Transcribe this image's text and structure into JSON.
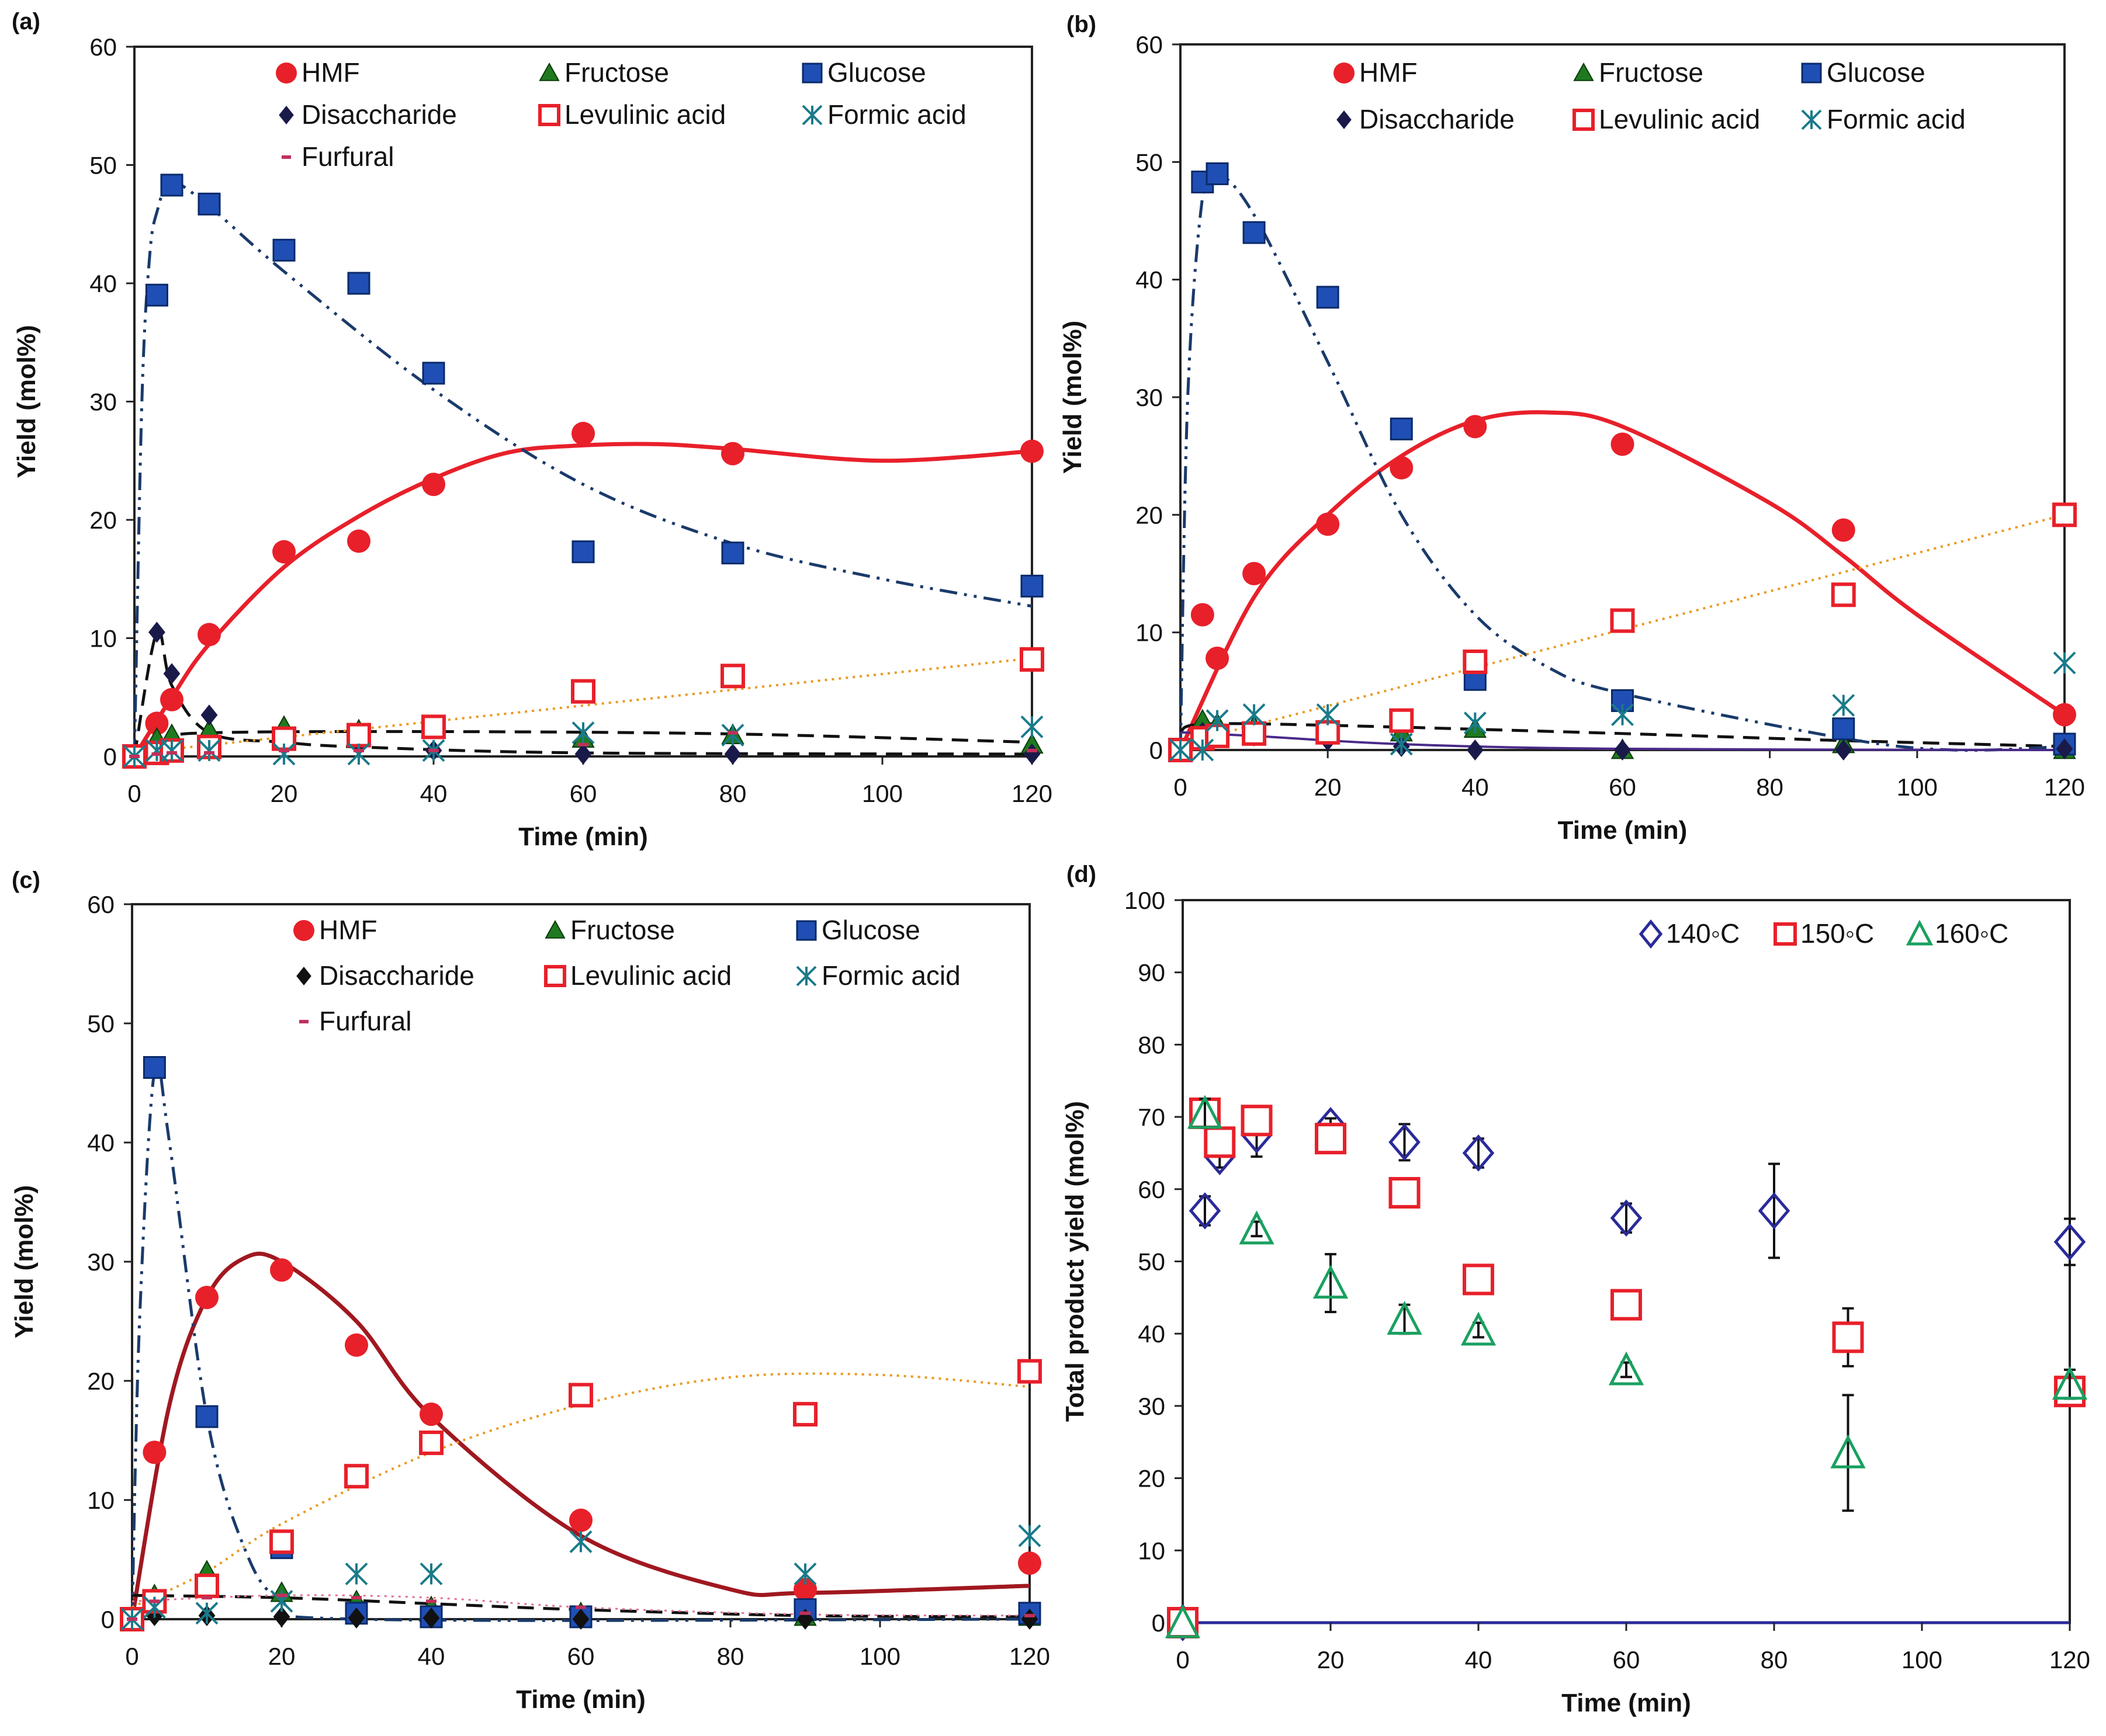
{
  "chart_data": [
    {
      "panel": "(a)",
      "type": "scatter",
      "xlabel": "Time (min)",
      "ylabel": "Yield (mol%)",
      "xlim": [
        0,
        120
      ],
      "ylim": [
        0,
        60
      ],
      "xticks": [
        0,
        20,
        40,
        60,
        80,
        100,
        120
      ],
      "yticks": [
        0,
        10,
        20,
        30,
        40,
        50,
        60
      ],
      "legend": "top",
      "grid": false,
      "x": [
        0,
        3,
        5,
        10,
        20,
        30,
        40,
        60,
        80,
        120
      ],
      "series": [
        {
          "name": "HMF",
          "marker": "circle",
          "color": "#e8202a",
          "values": [
            0,
            2.8,
            4.8,
            10.3,
            17.3,
            18.2,
            23,
            27.3,
            25.6,
            25.8
          ],
          "fit": {
            "style": "solid",
            "x": [
              0,
              5,
              10,
              20,
              30,
              40,
              50,
              60,
              70,
              80,
              100,
              120
            ],
            "y": [
              0,
              5,
              9.5,
              16,
              20.3,
              23.5,
              25.7,
              26.3,
              26.4,
              26,
              25,
              25.8
            ]
          }
        },
        {
          "name": "Fructose",
          "marker": "triangle",
          "color": "#1f7a1f",
          "values": [
            0,
            1.5,
            1.8,
            2.2,
            2.5,
            2.2,
            2.5,
            1.5,
            1.8,
            1.0
          ],
          "fit": {
            "style": "dashed",
            "x": [
              0,
              5,
              10,
              40,
              80,
              120
            ],
            "y": [
              0,
              1.5,
              2,
              2.1,
              1.9,
              1.2
            ]
          }
        },
        {
          "name": "Glucose",
          "marker": "square",
          "color": "#1f4fb4",
          "values": [
            0,
            39,
            48.3,
            46.7,
            42.8,
            40,
            32.4,
            17.3,
            17.2,
            14.4
          ],
          "fit": {
            "style": "dashdotdot",
            "x": [
              0,
              1,
              2,
              3,
              5,
              10,
              20,
              40,
              60,
              80,
              100,
              120
            ],
            "y": [
              0,
              30,
              42,
              46,
              48.5,
              46.5,
              41,
              31,
              23,
              18,
              15,
              12.7
            ]
          }
        },
        {
          "name": "Disaccharide",
          "marker": "diamond",
          "color": "#1a1a4a",
          "values": [
            0,
            10.5,
            7,
            3.5,
            1.2,
            1.0,
            0.5,
            0.2,
            0.2,
            0.2
          ],
          "fit": {
            "style": "dashed",
            "x": [
              0,
              3,
              5,
              10,
              20,
              30,
              60,
              120
            ],
            "y": [
              0,
              10.5,
              6,
              2,
              1.2,
              0.8,
              0.3,
              0.2
            ]
          }
        },
        {
          "name": "Levulinic acid",
          "marker": "open-square",
          "color": "#e8202a",
          "values": [
            0,
            0.3,
            0.5,
            0.8,
            1.5,
            1.8,
            2.5,
            5.5,
            6.8,
            8.2
          ],
          "fit": {
            "style": "dotted",
            "x": [
              0,
              120
            ],
            "y": [
              0.3,
              8.3
            ]
          }
        },
        {
          "name": "Formic acid",
          "marker": "asterisk",
          "color": "#1a7a8a",
          "values": [
            0,
            0.5,
            0.5,
            0.5,
            0.2,
            0.2,
            0.5,
            2.0,
            1.8,
            2.5
          ]
        },
        {
          "name": "Furfural",
          "marker": "dash",
          "color": "#c0305a",
          "values": [
            0,
            0.2,
            0.3,
            0.3,
            0.5,
            0.5,
            0.5,
            1.0,
            2.0,
            0.5
          ]
        }
      ]
    },
    {
      "panel": "(b)",
      "type": "scatter",
      "xlabel": "Time (min)",
      "ylabel": "Yield (mol%)",
      "xlim": [
        0,
        120
      ],
      "ylim": [
        0,
        60
      ],
      "xticks": [
        0,
        20,
        40,
        60,
        80,
        100,
        120
      ],
      "yticks": [
        0,
        10,
        20,
        30,
        40,
        50,
        60
      ],
      "legend": "top",
      "grid": false,
      "x": [
        0,
        3,
        5,
        10,
        20,
        30,
        40,
        60,
        90,
        120
      ],
      "series": [
        {
          "name": "HMF",
          "marker": "circle",
          "color": "#e8202a",
          "values": [
            0,
            11.5,
            7.8,
            15,
            19.2,
            24,
            27.5,
            26,
            18.7,
            3
          ],
          "fit": {
            "style": "solid",
            "x": [
              0,
              10,
              20,
              30,
              40,
              50,
              60,
              80,
              90,
              100,
              120
            ],
            "y": [
              0,
              13,
              20,
              25,
              28,
              28.7,
              27.5,
              21,
              16.5,
              11.5,
              3
            ]
          }
        },
        {
          "name": "Fructose",
          "marker": "triangle",
          "color": "#1f7a1f",
          "values": [
            0,
            2.5,
            2.2,
            2,
            1.8,
            1.5,
            1.8,
            0,
            0.5,
            0
          ],
          "fit": {
            "style": "dashed",
            "x": [
              0,
              3,
              20,
              60,
              90,
              120
            ],
            "y": [
              1.5,
              2.2,
              2.1,
              1.4,
              0.8,
              0.3
            ]
          }
        },
        {
          "name": "Glucose",
          "marker": "square",
          "color": "#1f4fb4",
          "values": [
            0,
            48.3,
            49,
            44,
            38.5,
            27.3,
            6,
            4.2,
            1.8,
            0.5
          ],
          "fit": {
            "style": "dashdotdot",
            "x": [
              0,
              1,
              3,
              5,
              10,
              20,
              30,
              40,
              50,
              60,
              90,
              105,
              120
            ],
            "y": [
              0,
              30,
              47,
              49,
              45.5,
              33,
              20,
              11.5,
              7,
              4.8,
              1,
              0,
              0.3
            ]
          }
        },
        {
          "name": "Disaccharide",
          "marker": "diamond",
          "color": "#1a1a4a",
          "values": [
            0,
            1.5,
            1.5,
            1.2,
            0.8,
            0.3,
            0,
            0,
            0,
            0.1
          ],
          "fit": {
            "style": "solid-thin",
            "x": [
              0,
              10,
              30,
              60,
              120
            ],
            "y": [
              1.5,
              1.2,
              0.5,
              0.1,
              0
            ]
          }
        },
        {
          "name": "Levulinic acid",
          "marker": "open-square",
          "color": "#e8202a",
          "values": [
            0,
            1,
            1.2,
            1.4,
            1.5,
            2.5,
            7.5,
            11,
            13.2,
            20
          ],
          "fit": {
            "style": "dotted",
            "x": [
              0,
              120
            ],
            "y": [
              0.5,
              20
            ]
          }
        },
        {
          "name": "Formic acid",
          "marker": "asterisk",
          "color": "#1a7a8a",
          "values": [
            0,
            0,
            2.5,
            3,
            3,
            0.5,
            2.3,
            3,
            3.8,
            7.4
          ]
        }
      ]
    },
    {
      "panel": "(c)",
      "type": "scatter",
      "xlabel": "Time (min)",
      "ylabel": "Yield (mol%)",
      "xlim": [
        0,
        120
      ],
      "ylim": [
        0,
        60
      ],
      "xticks": [
        0,
        20,
        40,
        60,
        80,
        100,
        120
      ],
      "yticks": [
        0,
        10,
        20,
        30,
        40,
        50,
        60
      ],
      "legend": "top",
      "grid": false,
      "x": [
        0,
        3,
        10,
        20,
        30,
        40,
        60,
        90,
        120
      ],
      "series": [
        {
          "name": "HMF",
          "marker": "circle",
          "color": "#e8202a",
          "values": [
            0,
            14,
            27,
            29.3,
            23,
            17.2,
            8.3,
            2.5,
            4.7
          ],
          "fit": {
            "style": "solid-dark",
            "x": [
              0,
              5,
              10,
              15,
              20,
              30,
              40,
              60,
              80,
              90,
              120
            ],
            "y": [
              0,
              18,
              27,
              30.3,
              30,
              25,
              17,
              7,
              2.5,
              2.2,
              2.8
            ]
          }
        },
        {
          "name": "Fructose",
          "marker": "triangle",
          "color": "#1f7a1f",
          "values": [
            0,
            2,
            4,
            2.2,
            1.5,
            1,
            0.5,
            0.2,
            0.2
          ],
          "fit": {
            "style": "dashed",
            "x": [
              0,
              20,
              40,
              60,
              90,
              120
            ],
            "y": [
              2,
              1.8,
              1.3,
              0.8,
              0.3,
              0.2
            ]
          }
        },
        {
          "name": "Glucose",
          "marker": "square",
          "color": "#1f4fb4",
          "values": [
            0,
            46.3,
            17,
            6,
            0.5,
            0.2,
            0.2,
            0.8,
            0.5
          ],
          "fit": {
            "style": "dashdotdot",
            "x": [
              0,
              1,
              3,
              5,
              10,
              15,
              20,
              30,
              120
            ],
            "y": [
              0,
              25,
              46,
              40,
              17,
              6,
              1.5,
              0,
              0
            ]
          }
        },
        {
          "name": "Disaccharide",
          "marker": "diamond",
          "color": "#111111",
          "values": [
            0,
            0.3,
            0.3,
            0.2,
            0.1,
            0.1,
            0,
            0,
            0
          ]
        },
        {
          "name": "Levulinic acid",
          "marker": "open-square",
          "color": "#e8202a",
          "values": [
            0,
            1.5,
            2.8,
            6.5,
            12,
            14.8,
            18.8,
            17.2,
            20.8
          ],
          "fit": {
            "style": "dotted",
            "x": [
              0,
              10,
              20,
              40,
              60,
              80,
              100,
              120
            ],
            "y": [
              1,
              4,
              8,
              14,
              18,
              20.3,
              20.5,
              19.5
            ]
          }
        },
        {
          "name": "Formic acid",
          "marker": "asterisk",
          "color": "#1a7a8a",
          "values": [
            0,
            1,
            0.5,
            1.5,
            3.8,
            3.8,
            6.5,
            3.8,
            7
          ]
        },
        {
          "name": "Furfural",
          "marker": "dash",
          "color": "#c0305a",
          "values": [
            0,
            1.5,
            1.8,
            2,
            1.8,
            1.5,
            1,
            0.5,
            0.3
          ],
          "fit": {
            "style": "dotted-pink",
            "x": [
              0,
              20,
              40,
              60,
              90,
              120
            ],
            "y": [
              1.5,
              2,
              1.8,
              1,
              0.4,
              0.3
            ]
          }
        }
      ]
    },
    {
      "panel": "(d)",
      "type": "scatter",
      "xlabel": "Time (min)",
      "ylabel": "Total product yield (mol%)",
      "xlim": [
        0,
        120
      ],
      "ylim": [
        0,
        100
      ],
      "xticks": [
        0,
        20,
        40,
        60,
        80,
        100,
        120
      ],
      "yticks": [
        0,
        10,
        20,
        30,
        40,
        50,
        60,
        70,
        80,
        90,
        100
      ],
      "legend": "top-right",
      "grid": false,
      "x": [
        0,
        3,
        5,
        10,
        20,
        30,
        40,
        60,
        80,
        90,
        120
      ],
      "series": [
        {
          "name": "140◦C",
          "marker": "open-diamond",
          "color": "#2a2a9a",
          "values": [
            0,
            57,
            64.5,
            67.5,
            68.8,
            66.5,
            65,
            56,
            57,
            null,
            52.7
          ],
          "errors": [
            0,
            2,
            1.5,
            3,
            1,
            2.5,
            2,
            2,
            6.5,
            null,
            3.2
          ]
        },
        {
          "name": "150◦C",
          "marker": "open-square",
          "color": "#e8202a",
          "values": [
            0,
            70.5,
            66.5,
            69.5,
            67,
            59.5,
            47.5,
            44,
            null,
            39.5,
            32
          ],
          "errors": [
            0,
            1,
            1,
            1,
            1,
            1,
            1,
            1,
            null,
            4,
            2
          ]
        },
        {
          "name": "160◦C",
          "marker": "open-triangle",
          "color": "#1aa060",
          "values": [
            0,
            70.5,
            null,
            54.5,
            47,
            42,
            40.5,
            35,
            null,
            23.5,
            33
          ],
          "errors": [
            0,
            2,
            null,
            1,
            4,
            2,
            1,
            1,
            null,
            8,
            2
          ]
        }
      ]
    }
  ]
}
